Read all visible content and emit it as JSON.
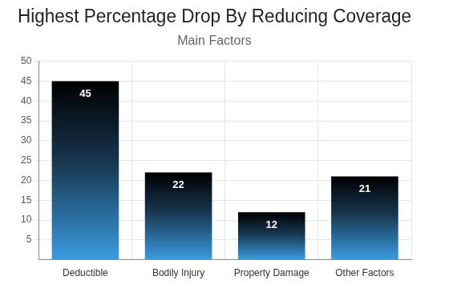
{
  "chart_data": {
    "type": "bar",
    "title": "Highest Percentage Drop By Reducing Coverage",
    "subtitle": "Main Factors",
    "categories": [
      "Deductible",
      "Bodily Injury",
      "Property Damage",
      "Other Factors"
    ],
    "values": [
      45,
      22,
      12,
      21
    ],
    "color": "#3a9be0",
    "ylim": [
      0,
      50
    ],
    "yticks": [
      5,
      10,
      15,
      20,
      25,
      30,
      35,
      40,
      45,
      50
    ],
    "grid": true,
    "data_labels": true
  }
}
